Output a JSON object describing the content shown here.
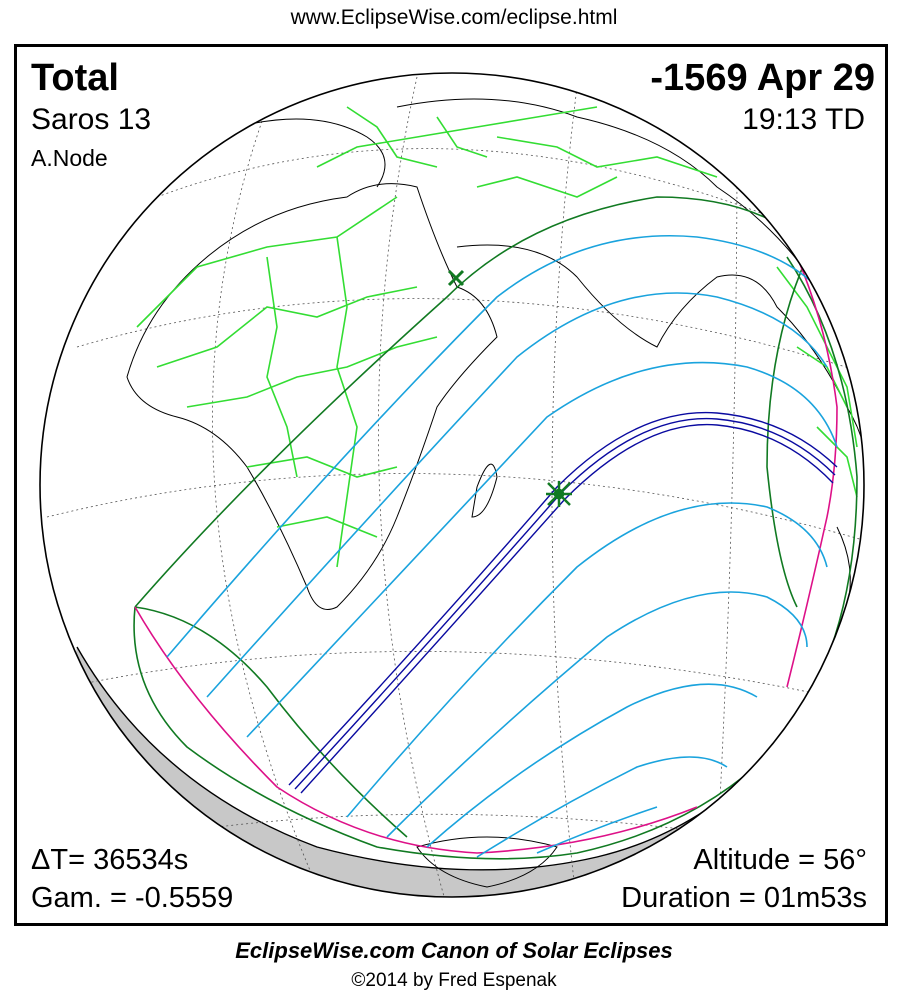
{
  "header": {
    "url": "www.EclipseWise.com/eclipse.html"
  },
  "eclipse": {
    "type": "Total",
    "date": "-1569 Apr 29",
    "saros": "Saros  13",
    "time": "19:13 TD",
    "node": "A.Node",
    "delta_t": "ΔT=  36534s",
    "gamma": "Gam. = -0.5559",
    "altitude": "Altitude = 56°",
    "duration": "Duration = 01m53s"
  },
  "footer": {
    "canon": "EclipseWise.com Canon of Solar Eclipses",
    "copyright": "©2014 by Fred Espenak"
  },
  "colors": {
    "coastline": "#000000",
    "borders": "#33dd33",
    "penumbral_limits": "#117a22",
    "magnitude_curves": "#1aa3dd",
    "central_path": "#0a0aa0",
    "rise_set_curves": "#dd1188",
    "night_shade": "#c8c8c8"
  },
  "icons": {
    "greatest_eclipse": "star-marker-icon",
    "greatest_duration": "x-marker-icon"
  }
}
